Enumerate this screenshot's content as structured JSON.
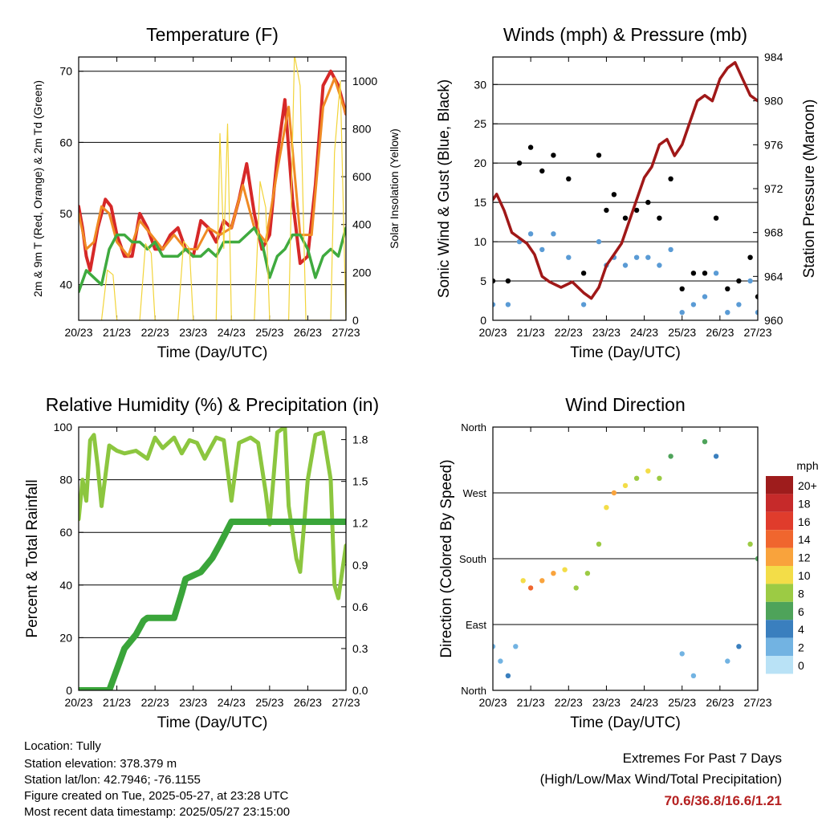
{
  "chart_data": [
    {
      "type": "line",
      "title": "Temperature (F)",
      "xlabel": "Time (Day/UTC)",
      "ylabel": "2m & 9m T (Red, Orange) & 2m Td (Green)",
      "ylabel_right": "Solar Insolation (Yellow)",
      "ylim": [
        35,
        72
      ],
      "ylim_right": [
        0,
        1100
      ],
      "yticks": [
        40,
        50,
        60,
        70
      ],
      "yticks_right": [
        0,
        200,
        400,
        600,
        800,
        1000
      ],
      "xtick_labels": [
        "20/23",
        "21/23",
        "22/23",
        "23/23",
        "24/23",
        "25/23",
        "26/23",
        "27/23"
      ],
      "grid": true,
      "series": [
        {
          "name": "2m T",
          "color": "#d62828",
          "x": [
            0,
            0.1,
            0.2,
            0.3,
            0.5,
            0.7,
            0.85,
            1,
            1.2,
            1.4,
            1.6,
            1.8,
            2,
            2.2,
            2.4,
            2.6,
            2.8,
            3,
            3.2,
            3.4,
            3.6,
            3.8,
            4,
            4.2,
            4.4,
            4.6,
            4.8,
            5,
            5.2,
            5.4,
            5.6,
            5.8,
            6,
            6.2,
            6.4,
            6.6,
            6.8,
            7
          ],
          "values": [
            51,
            48,
            44,
            42,
            48,
            52,
            51,
            47,
            44,
            44,
            50,
            48,
            45,
            45,
            47,
            48,
            45,
            44,
            49,
            48,
            46,
            49,
            48,
            52,
            57,
            50,
            45,
            47,
            58,
            66,
            52,
            43,
            44,
            54,
            68,
            70,
            68,
            64
          ]
        },
        {
          "name": "9m T",
          "color": "#f08a24",
          "x": [
            0,
            0.2,
            0.4,
            0.6,
            0.8,
            1,
            1.3,
            1.6,
            1.9,
            2.2,
            2.5,
            2.8,
            3.1,
            3.4,
            3.7,
            4,
            4.3,
            4.6,
            4.9,
            5.2,
            5.5,
            5.8,
            6.1,
            6.4,
            6.7,
            7
          ],
          "values": [
            50,
            45,
            46,
            51,
            50,
            46,
            44,
            49,
            47,
            45,
            47,
            45,
            45,
            48,
            47,
            48,
            54,
            48,
            46,
            56,
            65,
            47,
            47,
            65,
            69,
            64
          ]
        },
        {
          "name": "2m Td",
          "color": "#3faa3f",
          "x": [
            0,
            0.2,
            0.4,
            0.6,
            0.8,
            1,
            1.2,
            1.4,
            1.6,
            1.8,
            2,
            2.2,
            2.4,
            2.6,
            2.8,
            3,
            3.2,
            3.4,
            3.6,
            3.8,
            4,
            4.2,
            4.4,
            4.6,
            4.8,
            5,
            5.2,
            5.4,
            5.6,
            5.8,
            6,
            6.2,
            6.4,
            6.6,
            6.8,
            7
          ],
          "values": [
            39,
            42,
            41,
            40,
            45,
            47,
            47,
            46,
            46,
            45,
            46,
            44,
            44,
            44,
            45,
            44,
            44,
            45,
            44,
            46,
            46,
            46,
            47,
            48,
            46,
            41,
            44,
            45,
            47,
            47,
            45,
            41,
            44,
            45,
            44,
            48
          ]
        },
        {
          "name": "Solar Insolation",
          "axis": "right",
          "color": "#f2d43a",
          "x": [
            0.6,
            0.75,
            0.9,
            1.0,
            1.6,
            1.75,
            1.9,
            2.0,
            2.6,
            2.75,
            2.9,
            3.0,
            3.6,
            3.7,
            3.8,
            3.9,
            4.0,
            4.6,
            4.75,
            4.9,
            5.0,
            5.5,
            5.65,
            5.8,
            5.95,
            6.6,
            6.7,
            6.85,
            7.0
          ],
          "values": [
            0,
            210,
            190,
            0,
            0,
            320,
            280,
            0,
            0,
            330,
            300,
            0,
            0,
            780,
            300,
            820,
            0,
            0,
            580,
            470,
            0,
            0,
            1110,
            980,
            0,
            0,
            700,
            1000,
            0
          ]
        }
      ]
    },
    {
      "type": "scatter",
      "title": "Winds (mph) & Pressure (mb)",
      "xlabel": "Time (Day/UTC)",
      "ylabel": "Sonic Wind & Gust (Blue, Black)",
      "ylabel_right": "Station Pressure (Maroon)",
      "ylim": [
        0,
        33.5
      ],
      "ylim_right": [
        960,
        984
      ],
      "yticks": [
        0,
        5,
        10,
        15,
        20,
        25,
        30
      ],
      "yticks_right": [
        960,
        964,
        968,
        972,
        976,
        980,
        984
      ],
      "xtick_labels": [
        "20/23",
        "21/23",
        "22/23",
        "23/23",
        "24/23",
        "25/23",
        "26/23",
        "27/23"
      ],
      "grid": true,
      "series": [
        {
          "name": "Gust",
          "color": "#000000",
          "x": [
            0,
            0.4,
            0.7,
            1.0,
            1.3,
            1.6,
            2.0,
            2.4,
            2.8,
            3.0,
            3.2,
            3.5,
            3.8,
            4.1,
            4.4,
            4.7,
            5.0,
            5.3,
            5.6,
            5.9,
            6.2,
            6.5,
            6.8,
            7.0
          ],
          "values": [
            5,
            5,
            20,
            22,
            19,
            21,
            18,
            6,
            21,
            14,
            16,
            13,
            14,
            15,
            13,
            18,
            4,
            6,
            6,
            13,
            4,
            5,
            8,
            3
          ]
        },
        {
          "name": "Sonic Wind",
          "color": "#5a9bd5",
          "x": [
            0,
            0.4,
            0.7,
            1.0,
            1.3,
            1.6,
            2.0,
            2.4,
            2.8,
            3.0,
            3.2,
            3.5,
            3.8,
            4.1,
            4.4,
            4.7,
            5.0,
            5.3,
            5.6,
            5.9,
            6.2,
            6.5,
            6.8,
            7.0
          ],
          "values": [
            2,
            2,
            10,
            11,
            9,
            11,
            8,
            2,
            10,
            7,
            8,
            7,
            8,
            8,
            7,
            9,
            1,
            2,
            3,
            6,
            1,
            2,
            5,
            1
          ]
        },
        {
          "name": "Station Pressure",
          "axis": "right",
          "color": "#a01818",
          "x": [
            0,
            0.1,
            0.3,
            0.5,
            0.7,
            0.9,
            1.1,
            1.3,
            1.5,
            1.8,
            2.1,
            2.4,
            2.6,
            2.8,
            3,
            3.2,
            3.4,
            3.6,
            3.8,
            4,
            4.2,
            4.4,
            4.6,
            4.8,
            5,
            5.2,
            5.4,
            5.6,
            5.8,
            6,
            6.2,
            6.4,
            6.6,
            6.8,
            7
          ],
          "values": [
            971,
            971.5,
            970,
            968,
            967.5,
            967,
            966,
            964,
            963.5,
            963,
            963.5,
            962.5,
            962,
            963,
            965,
            966,
            967,
            969,
            971,
            973,
            974,
            976,
            976.5,
            975,
            976,
            978,
            980,
            980.5,
            980,
            982,
            983,
            983.5,
            982,
            980.5,
            980
          ]
        }
      ]
    },
    {
      "type": "line",
      "title": "Relative Humidity (%) & Precipitation (in)",
      "xlabel": "Time (Day/UTC)",
      "ylabel": "Percent & Total Rainfall",
      "ylim": [
        0,
        100
      ],
      "ylim_right": [
        0,
        1.89
      ],
      "yticks": [
        0,
        20,
        40,
        60,
        80,
        100
      ],
      "yticks_right": [
        0.0,
        0.3,
        0.6,
        0.9,
        1.2,
        1.5,
        1.8
      ],
      "xtick_labels": [
        "20/23",
        "21/23",
        "22/23",
        "23/23",
        "24/23",
        "25/23",
        "26/23",
        "27/23"
      ],
      "grid": true,
      "series": [
        {
          "name": "Relative Humidity",
          "color": "#8cc63f",
          "x": [
            0,
            0.1,
            0.2,
            0.3,
            0.4,
            0.5,
            0.6,
            0.8,
            1.0,
            1.2,
            1.5,
            1.8,
            2.0,
            2.2,
            2.5,
            2.7,
            2.9,
            3.1,
            3.3,
            3.6,
            3.8,
            4.0,
            4.2,
            4.5,
            4.7,
            4.9,
            5.0,
            5.2,
            5.4,
            5.5,
            5.7,
            5.8,
            6.0,
            6.2,
            6.4,
            6.6,
            6.7,
            6.8,
            7
          ],
          "values": [
            65,
            80,
            72,
            95,
            97,
            85,
            70,
            93,
            91,
            90,
            91,
            88,
            96,
            92,
            96,
            90,
            95,
            94,
            88,
            96,
            95,
            72,
            94,
            96,
            94,
            75,
            63,
            98,
            100,
            70,
            50,
            45,
            80,
            97,
            98,
            80,
            40,
            35,
            55
          ]
        },
        {
          "name": "Total Precipitation",
          "axis": "right",
          "color": "#3aa53a",
          "x": [
            0,
            0.8,
            1.0,
            1.2,
            1.5,
            1.7,
            1.8,
            2.5,
            2.7,
            2.8,
            3.2,
            3.5,
            3.7,
            4.0,
            7
          ],
          "values": [
            0,
            0,
            0.15,
            0.3,
            0.4,
            0.5,
            0.52,
            0.52,
            0.7,
            0.8,
            0.85,
            0.95,
            1.05,
            1.21,
            1.21
          ]
        }
      ]
    },
    {
      "type": "scatter",
      "title": "Wind Direction",
      "xlabel": "Time (Day/UTC)",
      "ylabel": "Direction (Colored By Speed)",
      "ylim": [
        0,
        360
      ],
      "ytick_labels": [
        "North",
        "East",
        "South",
        "West",
        "North"
      ],
      "xtick_labels": [
        "20/23",
        "21/23",
        "22/23",
        "23/23",
        "24/23",
        "25/23",
        "26/23",
        "27/23"
      ],
      "grid": true,
      "legend": {
        "title": "mph",
        "labels": [
          "20+",
          "18",
          "16",
          "14",
          "12",
          "10",
          "8",
          "6",
          "4",
          "2",
          "0"
        ],
        "colors": [
          "#9e1c1c",
          "#c62a2a",
          "#e03c2c",
          "#f0662e",
          "#f9a33c",
          "#f3dd48",
          "#9ccb44",
          "#4ea35a",
          "#3a7fbe",
          "#72b3e2",
          "#b9e2f6"
        ],
        "position": "right"
      },
      "series": [
        {
          "name": "Direction",
          "x": [
            0,
            0.2,
            0.4,
            0.6,
            0.8,
            1.0,
            1.3,
            1.6,
            1.9,
            2.2,
            2.5,
            2.8,
            3.0,
            3.2,
            3.5,
            3.8,
            4.1,
            4.4,
            4.7,
            5.0,
            5.3,
            5.6,
            5.9,
            6.2,
            6.5,
            6.8,
            7.0
          ],
          "values": [
            60,
            40,
            20,
            60,
            150,
            140,
            150,
            160,
            165,
            140,
            160,
            200,
            250,
            270,
            280,
            290,
            300,
            290,
            320,
            50,
            20,
            340,
            320,
            40,
            60,
            200,
            180
          ],
          "speeds": [
            1,
            2,
            3,
            2,
            10,
            13,
            12,
            11,
            9,
            8,
            7,
            8,
            9,
            12,
            10,
            8,
            9,
            7,
            6,
            1,
            2,
            5,
            4,
            2,
            3,
            7,
            5
          ]
        }
      ]
    }
  ],
  "info": {
    "location": "Location: Tully",
    "elevation": "Station elevation: 378.379 m",
    "latlon": "Station lat/lon: 42.7946; -76.1155",
    "created": "Figure created on Tue, 2025-05-27, at 23:28 UTC",
    "recent": "Most recent data timestamp: 2025/05/27 23:15:00"
  },
  "extremes": {
    "title": "Extremes For Past 7 Days",
    "subtitle": "(High/Low/Max Wind/Total Precipitation)",
    "values": "70.6/36.8/16.6/1.21"
  }
}
